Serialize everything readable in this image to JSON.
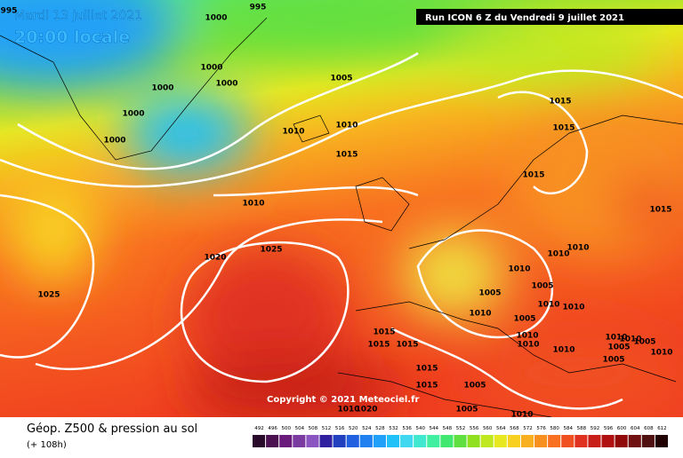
{
  "header": {
    "date": "Mardi 13 juillet 2021",
    "time": "20:00 locale",
    "run": "Run ICON 6 Z du Vendredi 9 juillet 2021"
  },
  "isobar_labels": [
    "995",
    "995",
    "1000",
    "1000",
    "1000",
    "1000",
    "1000",
    "1000",
    "1005",
    "1010",
    "1010",
    "1015",
    "1010",
    "1020",
    "1025",
    "1025",
    "1015",
    "1015",
    "1015",
    "1015",
    "1010",
    "1010",
    "1010",
    "1005",
    "1005",
    "1010",
    "1010",
    "1010",
    "1005",
    "1015",
    "1015",
    "1015",
    "1010",
    "1010",
    "1010",
    "1010",
    "1005",
    "1005",
    "1010",
    "1010",
    "1005",
    "1015",
    "1015",
    "1005",
    "1020",
    "1010",
    "1005",
    "1010"
  ],
  "copyright": "Copyright © 2021 Meteociel.fr",
  "footer": {
    "title": "Géop. Z500 & pression au sol",
    "subtitle": "(+ 108h)"
  },
  "scale": {
    "ticks": [
      492,
      496,
      500,
      504,
      508,
      512,
      516,
      520,
      524,
      528,
      532,
      536,
      540,
      544,
      548,
      552,
      556,
      560,
      564,
      568,
      572,
      576,
      580,
      584,
      588,
      592,
      596,
      600,
      604,
      608,
      612
    ],
    "colors": [
      "#2a0a2a",
      "#4b1050",
      "#6a1a7a",
      "#7b3aa0",
      "#8a55c0",
      "#3020a0",
      "#2040c0",
      "#2060e0",
      "#2080f0",
      "#20a0f8",
      "#20c0f8",
      "#40d8f0",
      "#40e8d0",
      "#40f0a0",
      "#40e870",
      "#60e040",
      "#90e020",
      "#c0e820",
      "#e8e820",
      "#f8d020",
      "#f8b020",
      "#f89020",
      "#f87020",
      "#f05020",
      "#e03020",
      "#c82018",
      "#b01010",
      "#900808",
      "#701010",
      "#501010",
      "#200000"
    ]
  }
}
